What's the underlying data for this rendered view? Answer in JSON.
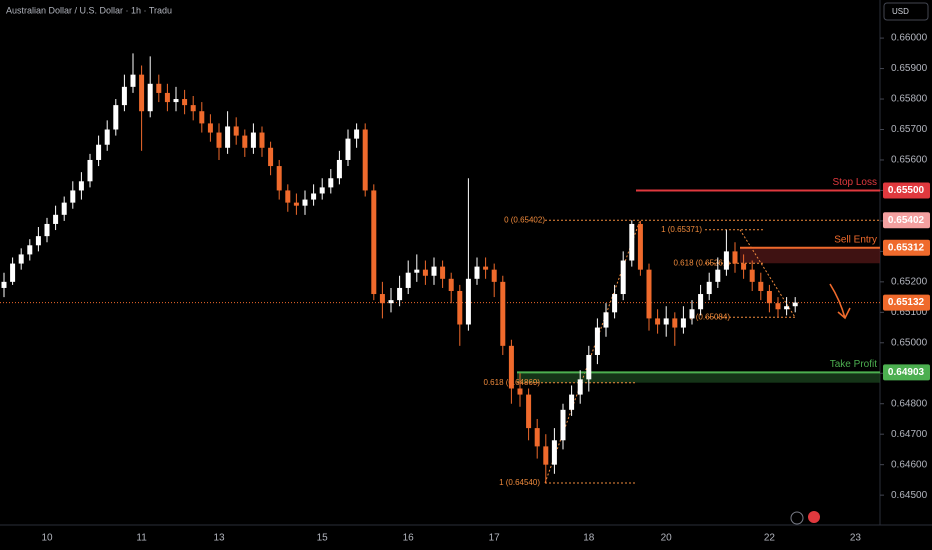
{
  "chart_data": {
    "type": "candlestick",
    "title": "Australian Dollar / U.S. Dollar · 1h · Tradu",
    "currency": "USD",
    "up_color": "#ffffff",
    "down_color": "#ef6a2c",
    "categories": [
      null,
      null,
      null,
      null,
      null,
      "10",
      null,
      null,
      null,
      null,
      null,
      null,
      null,
      null,
      null,
      null,
      "11",
      null,
      null,
      null,
      null,
      null,
      null,
      null,
      null,
      "13",
      null,
      null,
      null,
      null,
      null,
      null,
      null,
      null,
      null,
      null,
      null,
      "15",
      null,
      null,
      null,
      null,
      null,
      null,
      null,
      null,
      null,
      "16",
      null,
      null,
      null,
      null,
      null,
      null,
      null,
      null,
      null,
      "17",
      null,
      null,
      null,
      null,
      null,
      null,
      null,
      null,
      null,
      null,
      "18",
      null,
      null,
      null,
      null,
      null,
      null,
      null,
      null,
      "20",
      null,
      null,
      null,
      null,
      null,
      null,
      null,
      null,
      null,
      null,
      null,
      "22",
      null,
      null,
      null,
      null,
      null,
      null,
      null,
      null,
      null,
      "23",
      null,
      null
    ],
    "open": [
      0.6518,
      0.652,
      0.6526,
      0.6529,
      0.6532,
      0.6535,
      0.6539,
      0.6542,
      0.6546,
      0.655,
      0.6553,
      0.656,
      0.6565,
      0.657,
      0.6578,
      0.6584,
      0.6588,
      0.6576,
      0.6585,
      0.6582,
      0.6579,
      0.658,
      0.6578,
      0.6576,
      0.6572,
      0.6569,
      0.6564,
      0.6571,
      0.6568,
      0.6564,
      0.6569,
      0.6564,
      0.6558,
      0.655,
      0.6546,
      0.6545,
      0.6547,
      0.6549,
      0.6551,
      0.6554,
      0.656,
      0.6567,
      0.657,
      0.655,
      0.6516,
      0.6513,
      0.6514,
      0.6518,
      0.6523,
      0.6524,
      0.6522,
      0.6525,
      0.6521,
      0.6517,
      0.6506,
      0.6521,
      0.6525,
      0.6524,
      0.652,
      0.6499,
      0.6485,
      0.6483,
      0.6472,
      0.6466,
      0.646,
      0.6468,
      0.6478,
      0.6483,
      0.6488,
      0.6496,
      0.6505,
      0.651,
      0.6516,
      0.6527,
      0.6539,
      0.6524,
      0.6508,
      0.6506,
      0.6508,
      0.6505,
      0.6508,
      0.6511,
      0.6516,
      0.652,
      0.6524,
      0.653,
      0.6526,
      0.6524,
      0.652,
      0.6517,
      0.6513,
      0.6511,
      0.6512,
      null,
      null,
      null,
      null,
      null,
      null,
      null,
      null,
      null
    ],
    "high": [
      0.6523,
      0.6528,
      0.6531,
      0.6534,
      0.6538,
      0.6541,
      0.6545,
      0.6548,
      0.6553,
      0.6556,
      0.6562,
      0.6568,
      0.6573,
      0.658,
      0.6588,
      0.6595,
      0.6591,
      0.6594,
      0.6588,
      0.6585,
      0.6584,
      0.6583,
      0.6581,
      0.6579,
      0.6575,
      0.6572,
      0.6576,
      0.6574,
      0.657,
      0.6572,
      0.6571,
      0.6566,
      0.656,
      0.6552,
      0.6549,
      0.655,
      0.6552,
      0.6554,
      0.6557,
      0.6563,
      0.657,
      0.6572,
      0.6572,
      0.6552,
      0.652,
      0.6518,
      0.6522,
      0.6527,
      0.6529,
      0.6527,
      0.6528,
      0.6527,
      0.6523,
      0.6519,
      0.6554,
      0.6528,
      0.6528,
      0.6526,
      0.6522,
      0.6501,
      0.649,
      0.6485,
      0.6475,
      0.647,
      0.6472,
      0.648,
      0.6486,
      0.6491,
      0.6499,
      0.6508,
      0.6513,
      0.6519,
      0.653,
      0.65402,
      0.654,
      0.6526,
      0.6511,
      0.6512,
      0.651,
      0.6512,
      0.6514,
      0.6519,
      0.6523,
      0.6528,
      0.65371,
      0.6533,
      0.6529,
      0.6527,
      0.6523,
      0.6519,
      0.6515,
      0.6515,
      0.6515,
      null,
      null,
      null,
      null,
      null,
      null,
      null,
      null,
      null
    ],
    "low": [
      0.6515,
      0.6519,
      0.6524,
      0.6527,
      0.653,
      0.6533,
      0.6537,
      0.654,
      0.6544,
      0.6547,
      0.6551,
      0.6558,
      0.6563,
      0.6568,
      0.6576,
      0.6582,
      0.6563,
      0.6574,
      0.6579,
      0.6576,
      0.6576,
      0.6575,
      0.6573,
      0.6569,
      0.6566,
      0.656,
      0.6562,
      0.6565,
      0.6561,
      0.6562,
      0.6561,
      0.6555,
      0.6547,
      0.6543,
      0.6542,
      0.6542,
      0.6545,
      0.6547,
      0.6549,
      0.6552,
      0.6558,
      0.6564,
      0.6548,
      0.6514,
      0.6508,
      0.651,
      0.6512,
      0.6516,
      0.652,
      0.6519,
      0.6519,
      0.6518,
      0.6513,
      0.6499,
      0.6504,
      0.6519,
      0.6521,
      0.6515,
      0.6496,
      0.648,
      0.6479,
      0.6468,
      0.6462,
      0.6454,
      0.6457,
      0.6465,
      0.6476,
      0.648,
      0.6484,
      0.6493,
      0.6502,
      0.6508,
      0.6514,
      0.6525,
      0.6522,
      0.6504,
      0.6503,
      0.6502,
      0.6499,
      0.6503,
      0.6506,
      0.6509,
      0.6514,
      0.6518,
      0.6522,
      0.6523,
      0.6521,
      0.6517,
      0.6514,
      0.651,
      0.65084,
      0.6509,
      0.651,
      null,
      null,
      null,
      null,
      null,
      null,
      null,
      null,
      null
    ],
    "close": [
      0.652,
      0.6526,
      0.6529,
      0.6532,
      0.6535,
      0.6539,
      0.6542,
      0.6546,
      0.655,
      0.6553,
      0.656,
      0.6565,
      0.657,
      0.6578,
      0.6584,
      0.6588,
      0.6576,
      0.6585,
      0.6582,
      0.6579,
      0.658,
      0.6578,
      0.6576,
      0.6572,
      0.6569,
      0.6564,
      0.6571,
      0.6568,
      0.6564,
      0.6569,
      0.6564,
      0.6558,
      0.655,
      0.6546,
      0.6545,
      0.6547,
      0.6549,
      0.6551,
      0.6554,
      0.656,
      0.6567,
      0.657,
      0.655,
      0.6516,
      0.6513,
      0.6514,
      0.6518,
      0.6523,
      0.6524,
      0.6522,
      0.6525,
      0.6521,
      0.6517,
      0.6506,
      0.6521,
      0.6525,
      0.6524,
      0.652,
      0.6499,
      0.6485,
      0.6483,
      0.6472,
      0.6466,
      0.646,
      0.6468,
      0.6478,
      0.6483,
      0.6488,
      0.6496,
      0.6505,
      0.651,
      0.6516,
      0.6527,
      0.6539,
      0.6524,
      0.6508,
      0.6506,
      0.6508,
      0.6505,
      0.6508,
      0.6511,
      0.6516,
      0.652,
      0.6524,
      0.653,
      0.6526,
      0.6524,
      0.652,
      0.6517,
      0.6513,
      0.6511,
      0.6512,
      0.65132,
      null,
      null,
      null,
      null,
      null,
      null,
      null,
      null,
      null
    ],
    "ylim": [
      0.64402,
      0.66125
    ],
    "yticks": [
      {
        "value": 0.645,
        "label": "0.64500"
      },
      {
        "value": 0.646,
        "label": "0.64600"
      },
      {
        "value": 0.647,
        "label": "0.64700"
      },
      {
        "value": 0.648,
        "label": "0.64800"
      },
      {
        "value": 0.649,
        "label": "0.64900"
      },
      {
        "value": 0.65,
        "label": "0.65000"
      },
      {
        "value": 0.651,
        "label": "0.65100"
      },
      {
        "value": 0.652,
        "label": "0.65200"
      },
      {
        "value": 0.653,
        "label": "0.65300"
      },
      {
        "value": 0.654,
        "label": "0.65400"
      },
      {
        "value": 0.655,
        "label": "0.65500"
      },
      {
        "value": 0.656,
        "label": "0.65600"
      },
      {
        "value": 0.657,
        "label": "0.65700"
      },
      {
        "value": 0.658,
        "label": "0.65800"
      },
      {
        "value": 0.659,
        "label": "0.65900"
      },
      {
        "value": 0.66,
        "label": "0.66000"
      }
    ],
    "last_price": {
      "value": 0.65132,
      "label": "0.65132",
      "color": "#ef6a2c"
    },
    "levels": [
      {
        "name": "Stop Loss",
        "value": 0.655,
        "label": "0.65500",
        "color": "#e0393e"
      },
      {
        "name": "Sell Entry",
        "value": 0.65312,
        "label": "0.65312",
        "color": "#ef6a2c"
      },
      {
        "name": "Take Profit",
        "value": 0.64903,
        "label": "0.64903",
        "color": "#4caf50"
      }
    ],
    "fib": [
      {
        "text": "0 (0.65402)",
        "value": 0.65402,
        "label": "0.65402"
      },
      {
        "text": "1 (0.64540)",
        "value": 0.6454
      },
      {
        "text": "0.618 (0.64869)",
        "value": 0.64869
      },
      {
        "text": "1 (0.65371)",
        "value": 0.65371
      },
      {
        "text": "0.618 (0.65261)",
        "value": 0.65261
      },
      {
        "text": "0 (0.65084)",
        "value": 0.65084
      }
    ],
    "fib_color": "#ef8a3c",
    "badge_color": "#f4a0a0"
  }
}
